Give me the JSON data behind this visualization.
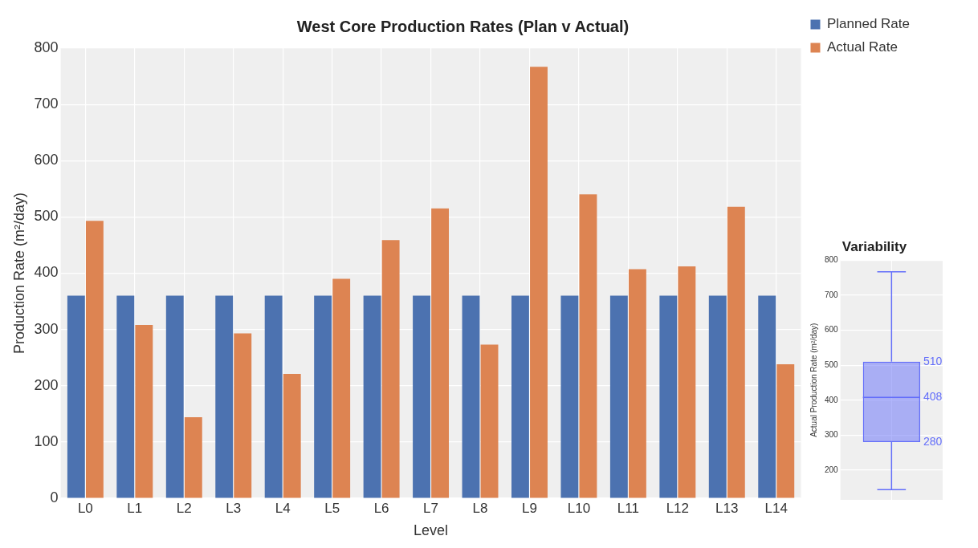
{
  "chart_data": [
    {
      "type": "bar",
      "title": "West Core Production Rates (Plan v Actual)",
      "xlabel": "Level",
      "ylabel": "Production Rate (m²/day)",
      "categories": [
        "L0",
        "L1",
        "L2",
        "L3",
        "L4",
        "L5",
        "L6",
        "L7",
        "L8",
        "L9",
        "L10",
        "L11",
        "L12",
        "L13",
        "L14"
      ],
      "series": [
        {
          "name": "Planned Rate",
          "color": "#4c72b0",
          "values": [
            360,
            360,
            360,
            360,
            360,
            360,
            360,
            360,
            360,
            360,
            360,
            360,
            360,
            360,
            360
          ]
        },
        {
          "name": "Actual Rate",
          "color": "#dd8452",
          "values": [
            493,
            308,
            144,
            293,
            221,
            390,
            459,
            515,
            273,
            767,
            540,
            407,
            412,
            518,
            238
          ]
        }
      ],
      "ylim": [
        0,
        800
      ],
      "yticks": [
        0,
        100,
        200,
        300,
        400,
        500,
        600,
        700,
        800
      ],
      "grid": true,
      "legend": "top right"
    },
    {
      "type": "box",
      "title": "Variability",
      "ylabel": "Actual Production Rate (m²/day)",
      "categories": [
        null
      ],
      "color": "#636efa",
      "boxes": [
        {
          "low": 144,
          "q1": 280,
          "median": 408,
          "q3": 510,
          "high": 767
        }
      ],
      "annotations": [
        "510",
        "408",
        "280"
      ],
      "ylim": [
        115,
        800
      ],
      "yticks": [
        200,
        300,
        400,
        500,
        600,
        700,
        800
      ],
      "grid": true,
      "tick_labels": "y"
    }
  ]
}
